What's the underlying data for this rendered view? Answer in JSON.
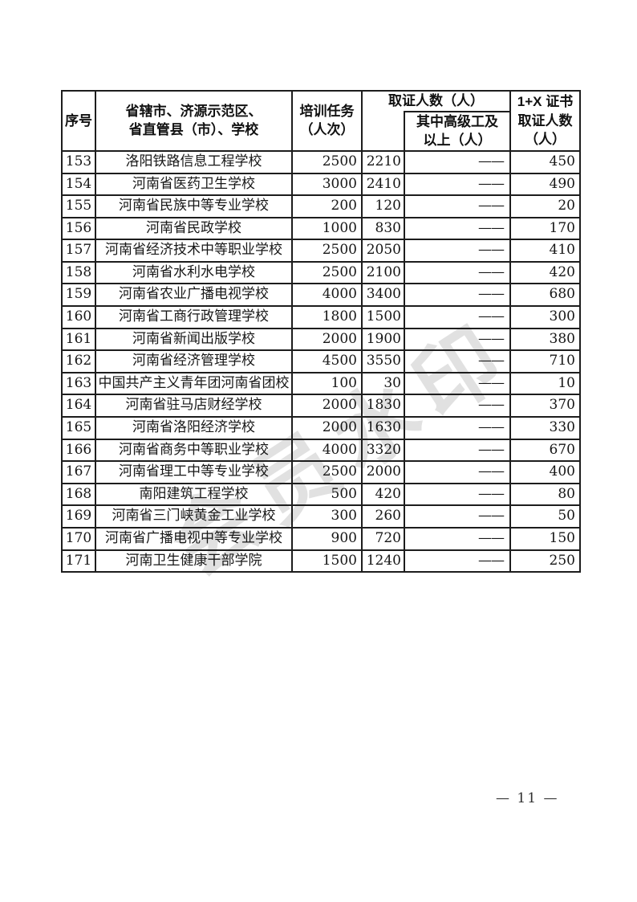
{
  "watermark": {
    "text": "会员水印"
  },
  "table": {
    "header": {
      "index": "序号",
      "school": "省辖市、济源示范区、\n省直管县（市）、学校",
      "training": "培训任务\n（人次）",
      "cert_group": "取证人数（人）",
      "cert_senior": "其中高级工及\n以上（人）",
      "x_cert": "1+X 证书\n取证人数\n（人）"
    },
    "rows": [
      {
        "no": "153",
        "school": "洛阳铁路信息工程学校",
        "training": "2500",
        "cert": "2210",
        "senior": "——",
        "x_cert": "450"
      },
      {
        "no": "154",
        "school": "河南省医药卫生学校",
        "training": "3000",
        "cert": "2410",
        "senior": "——",
        "x_cert": "490"
      },
      {
        "no": "155",
        "school": "河南省民族中等专业学校",
        "training": "200",
        "cert": "120",
        "senior": "——",
        "x_cert": "20"
      },
      {
        "no": "156",
        "school": "河南省民政学校",
        "training": "1000",
        "cert": "830",
        "senior": "——",
        "x_cert": "170"
      },
      {
        "no": "157",
        "school": "河南省经济技术中等职业学校",
        "training": "2500",
        "cert": "2050",
        "senior": "——",
        "x_cert": "410"
      },
      {
        "no": "158",
        "school": "河南省水利水电学校",
        "training": "2500",
        "cert": "2100",
        "senior": "——",
        "x_cert": "420"
      },
      {
        "no": "159",
        "school": "河南省农业广播电视学校",
        "training": "4000",
        "cert": "3400",
        "senior": "——",
        "x_cert": "680"
      },
      {
        "no": "160",
        "school": "河南省工商行政管理学校",
        "training": "1800",
        "cert": "1500",
        "senior": "——",
        "x_cert": "300"
      },
      {
        "no": "161",
        "school": "河南省新闻出版学校",
        "training": "2000",
        "cert": "1900",
        "senior": "——",
        "x_cert": "380"
      },
      {
        "no": "162",
        "school": "河南省经济管理学校",
        "training": "4500",
        "cert": "3550",
        "senior": "——",
        "x_cert": "710"
      },
      {
        "no": "163",
        "school": "中国共产主义青年团河南省团校",
        "training": "100",
        "cert": "30",
        "senior": "——",
        "x_cert": "10"
      },
      {
        "no": "164",
        "school": "河南省驻马店财经学校",
        "training": "2000",
        "cert": "1830",
        "senior": "——",
        "x_cert": "370"
      },
      {
        "no": "165",
        "school": "河南省洛阳经济学校",
        "training": "2000",
        "cert": "1630",
        "senior": "——",
        "x_cert": "330"
      },
      {
        "no": "166",
        "school": "河南省商务中等职业学校",
        "training": "4000",
        "cert": "3320",
        "senior": "——",
        "x_cert": "670"
      },
      {
        "no": "167",
        "school": "河南省理工中等专业学校",
        "training": "2500",
        "cert": "2000",
        "senior": "——",
        "x_cert": "400"
      },
      {
        "no": "168",
        "school": "南阳建筑工程学校",
        "training": "500",
        "cert": "420",
        "senior": "——",
        "x_cert": "80"
      },
      {
        "no": "169",
        "school": "河南省三门峡黄金工业学校",
        "training": "300",
        "cert": "260",
        "senior": "——",
        "x_cert": "50"
      },
      {
        "no": "170",
        "school": "河南省广播电视中等专业学校",
        "training": "900",
        "cert": "720",
        "senior": "——",
        "x_cert": "150"
      },
      {
        "no": "171",
        "school": "河南卫生健康干部学院",
        "training": "1500",
        "cert": "1240",
        "senior": "——",
        "x_cert": "250"
      }
    ]
  },
  "footer": {
    "page_number": "— 11 —"
  }
}
